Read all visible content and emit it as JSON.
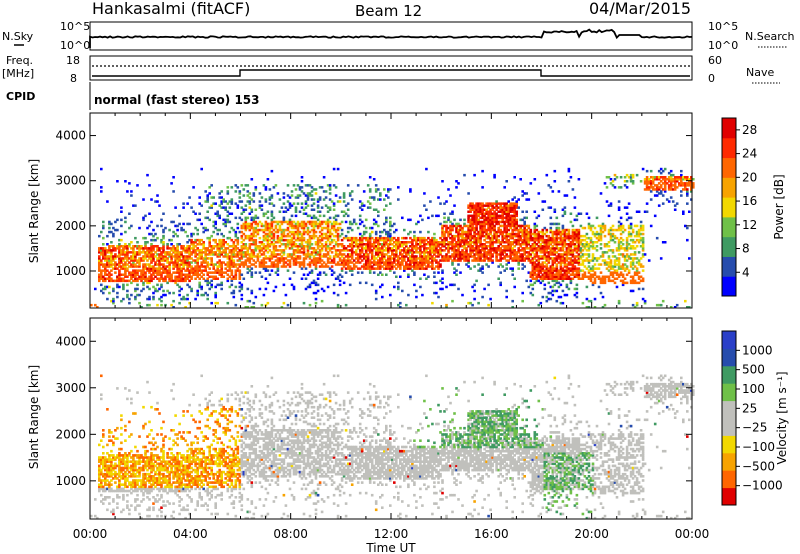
{
  "header": {
    "station": "Hankasalmi (fitACF)",
    "beam": "Beam 12",
    "date": "04/Mar/2015"
  },
  "noise_panel": {
    "left_label": "N.Sky",
    "right_label": "N.Search",
    "y_ticks": [
      "10^5",
      "10^0"
    ]
  },
  "freq_panel": {
    "left_label_1": "Freq.",
    "left_label_2": "[MHz]",
    "left_ticks": [
      "18",
      "8"
    ],
    "right_label": "Nave",
    "right_ticks": [
      "60",
      "0"
    ]
  },
  "cpid": {
    "label": "CPID",
    "text": "normal (fast stereo) 153"
  },
  "colors": {
    "power_scale": [
      "#0000ff",
      "#264cad",
      "#3f9a62",
      "#6fc048",
      "#f2d800",
      "#f7a300",
      "#ff6600",
      "#ff2a00",
      "#e00000"
    ],
    "velocity_scale": [
      "#e00000",
      "#ff6600",
      "#f7a300",
      "#f2d800",
      "#c0c0bc",
      "#c0c0bc",
      "#6fc048",
      "#3f9a62",
      "#264cad",
      "#2a3fc8"
    ],
    "scatter_gray": "#c0c0bc"
  },
  "chart_data": [
    {
      "type": "heatmap",
      "name": "power",
      "ylabel": "Slant Range [km]",
      "ylim": [
        180,
        4500
      ],
      "y_ticks": [
        "1000",
        "2000",
        "3000",
        "4000"
      ],
      "x_ticks": [
        "00:00",
        "04:00",
        "08:00",
        "12:00",
        "16:00",
        "20:00",
        "00:00"
      ],
      "colorbar_label": "Power [dB]",
      "colorbar_ticks": [
        "4",
        "8",
        "12",
        "16",
        "20",
        "24",
        "28"
      ],
      "colorbar_range": [
        0,
        30
      ]
    },
    {
      "type": "heatmap",
      "name": "velocity",
      "ylabel": "Slant Range [km]",
      "ylim": [
        180,
        4500
      ],
      "y_ticks": [
        "1000",
        "2000",
        "3000",
        "4000"
      ],
      "x_ticks": [
        "00:00",
        "04:00",
        "08:00",
        "12:00",
        "16:00",
        "20:00",
        "00:00"
      ],
      "xlabel": "Time UT",
      "colorbar_label": "Velocity [m s⁻¹]",
      "colorbar_ticks": [
        "1000",
        "500",
        "100",
        "25",
        "−25",
        "−100",
        "−500",
        "−1000"
      ]
    }
  ]
}
